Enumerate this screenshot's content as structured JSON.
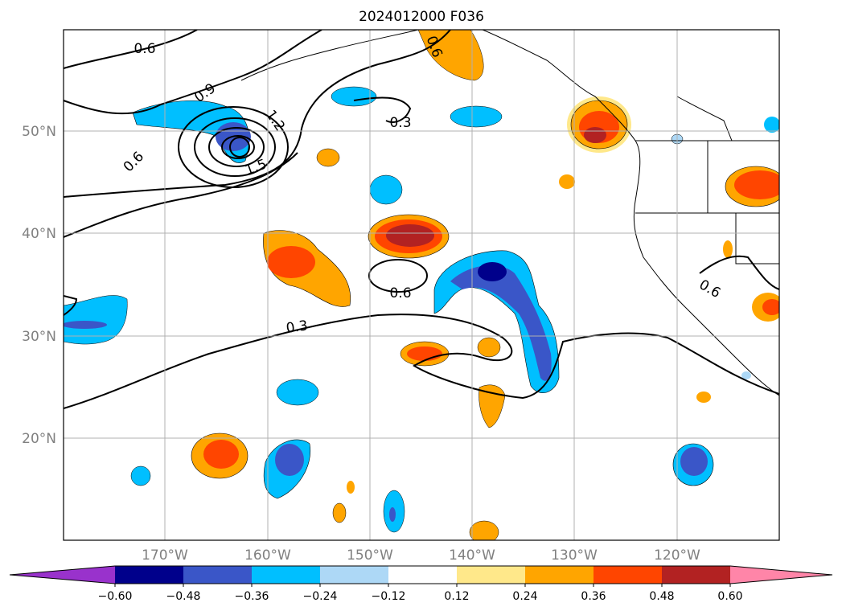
{
  "title": "2024012000 F036",
  "lat_labels": [
    "50°N",
    "40°N",
    "30°N",
    "20°N"
  ],
  "lon_labels": [
    "170°W",
    "160°W",
    "150°W",
    "140°W",
    "130°W",
    "120°W"
  ],
  "colorbar": {
    "ticks": [
      "−0.60",
      "−0.48",
      "−0.36",
      "−0.24",
      "−0.12",
      "0.12",
      "0.24",
      "0.36",
      "0.48",
      "0.60"
    ],
    "colors": [
      "#9932cc",
      "#00008b",
      "#3a56c8",
      "#00bfff",
      "#add8f6",
      "#ffffff",
      "#ffe88a",
      "#ffa500",
      "#ff4500",
      "#b22222",
      "#ff85a8"
    ]
  },
  "contour_labels": [
    "0.6",
    "0.9",
    "1.2",
    "1.5",
    "0.6",
    "0.3",
    "0.6",
    "0.3",
    "0.6",
    "0.6"
  ]
}
